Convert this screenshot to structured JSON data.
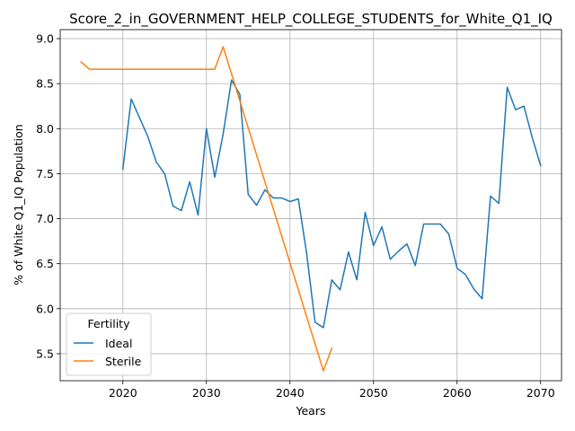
{
  "chart_data": {
    "type": "line",
    "title": "Score_2_in_GOVERNMENT_HELP_COLLEGE_STUDENTS_for_White_Q1_IQ",
    "xlabel": "Years",
    "ylabel": "% of White Q1_IQ Population",
    "xlim": [
      2012.5,
      2072.5
    ],
    "ylim": [
      5.2,
      9.1
    ],
    "xticks": [
      2020,
      2030,
      2040,
      2050,
      2060,
      2070
    ],
    "yticks": [
      5.5,
      6.0,
      6.5,
      7.0,
      7.5,
      8.0,
      8.5,
      9.0
    ],
    "grid": true,
    "legend": {
      "title": "Fertility",
      "placement": "lower-left"
    },
    "series": [
      {
        "name": "Ideal",
        "color": "#1f77b4",
        "x": [
          2020,
          2021,
          2022,
          2023,
          2024,
          2025,
          2026,
          2027,
          2028,
          2029,
          2030,
          2031,
          2032,
          2033,
          2034,
          2035,
          2036,
          2037,
          2038,
          2039,
          2040,
          2041,
          2042,
          2043,
          2044,
          2045,
          2046,
          2047,
          2048,
          2049,
          2050,
          2051,
          2052,
          2053,
          2054,
          2055,
          2056,
          2057,
          2058,
          2059,
          2060,
          2061,
          2062,
          2063,
          2064,
          2065,
          2066,
          2067,
          2068,
          2069,
          2070
        ],
        "y": [
          7.55,
          8.33,
          8.12,
          7.91,
          7.63,
          7.5,
          7.14,
          7.09,
          7.41,
          7.04,
          8.0,
          7.46,
          7.94,
          8.54,
          8.38,
          7.27,
          7.15,
          7.32,
          7.23,
          7.23,
          7.19,
          7.22,
          6.61,
          5.85,
          5.79,
          6.32,
          6.21,
          6.63,
          6.32,
          7.07,
          6.7,
          6.91,
          6.55,
          6.64,
          6.72,
          6.48,
          6.94,
          6.94,
          6.94,
          6.83,
          6.45,
          6.38,
          6.22,
          6.11,
          7.25,
          7.17,
          8.46,
          8.21,
          8.25,
          7.9,
          7.59
        ]
      },
      {
        "name": "Sterile",
        "color": "#ff7f0e",
        "x": [
          2015,
          2016,
          2031,
          2032,
          2044,
          2045
        ],
        "y": [
          8.74,
          8.66,
          8.66,
          8.91,
          5.31,
          5.56
        ]
      }
    ]
  }
}
